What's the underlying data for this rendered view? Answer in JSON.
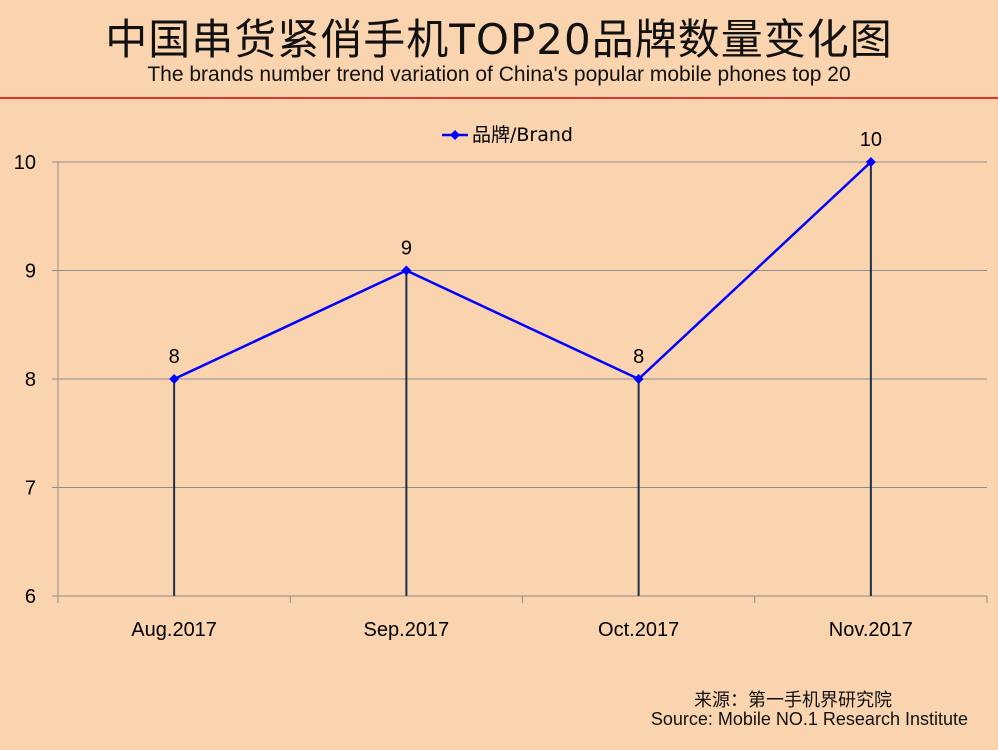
{
  "header": {
    "title_cn": "中国串货紧俏手机TOP20品牌数量变化图",
    "title_en": "The brands number trend variation of China's popular mobile phones top 20"
  },
  "footer": {
    "source_cn": "来源：第一手机界研究院",
    "source_en": "Source: Mobile NO.1 Research Institute"
  },
  "colors": {
    "background": "#FAD4AE",
    "series": "#0000FF",
    "drop_lines": "#1F2D4F",
    "gridlines": "#8C8C8C",
    "title_rule": "#E8312A"
  },
  "chart_data": {
    "type": "line",
    "categories": [
      "Aug.2017",
      "Sep.2017",
      "Oct.2017",
      "Nov.2017"
    ],
    "series": [
      {
        "name": "品牌/Brand",
        "values": [
          8,
          9,
          8,
          10
        ],
        "marker": "diamond"
      }
    ],
    "ylim": [
      6,
      10
    ],
    "yticks": [
      6,
      7,
      8,
      9,
      10
    ],
    "grid": true,
    "drop_lines": true,
    "data_labels": true,
    "legend": "top-center"
  }
}
